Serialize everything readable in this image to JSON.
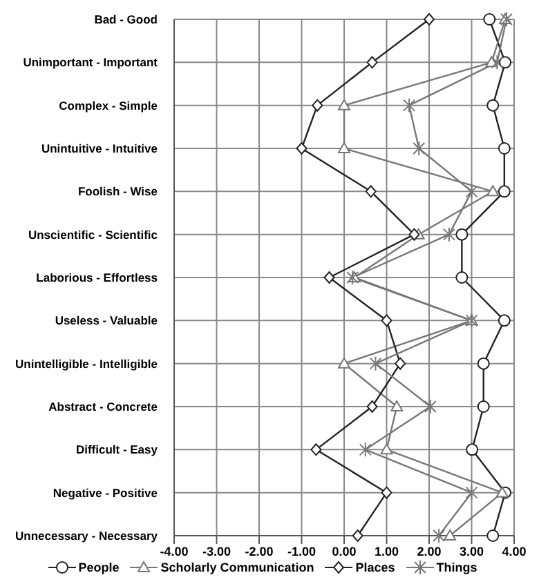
{
  "chart_data": {
    "type": "line",
    "orientation": "horizontal",
    "categories": [
      "Bad - Good",
      "Unimportant - Important",
      "Complex - Simple",
      "Unintuitive - Intuitive",
      "Foolish - Wise",
      "Unscientific - Scientific",
      "Laborious - Effortless",
      "Useless - Valuable",
      "Unintelligible - Intelligible",
      "Abstract - Concrete",
      "Difficult - Easy",
      "Negative - Positive",
      "Unnecessary - Necessary"
    ],
    "series": [
      {
        "name": "People",
        "color": "#222222",
        "marker": "circle",
        "values": [
          3.42,
          3.79,
          3.5,
          3.77,
          3.77,
          2.77,
          2.77,
          3.77,
          3.28,
          3.28,
          3.01,
          3.79,
          3.5
        ]
      },
      {
        "name": "Scholarly Communication",
        "color": "#777777",
        "marker": "triangle",
        "values": [
          3.79,
          3.47,
          0,
          0,
          3.5,
          1.75,
          0.24,
          3.0,
          0,
          1.24,
          1.0,
          3.72,
          2.49
        ]
      },
      {
        "name": "Places",
        "color": "#222222",
        "marker": "diamond",
        "values": [
          2.0,
          0.66,
          -0.63,
          -1.0,
          0.63,
          1.65,
          -0.35,
          1.0,
          1.32,
          0.66,
          -0.66,
          1.0,
          0.32
        ]
      },
      {
        "name": "Things",
        "color": "#777777",
        "marker": "cross",
        "values": [
          3.82,
          3.6,
          1.53,
          1.76,
          3.0,
          2.47,
          0.2,
          3.0,
          0.74,
          2.03,
          0.5,
          3.0,
          2.23
        ]
      }
    ],
    "xlim": [
      -4,
      4
    ],
    "xticks": [
      {
        "value": -4,
        "label": "-4.00"
      },
      {
        "value": -3,
        "label": "-3.00"
      },
      {
        "value": -2,
        "label": "-2.00"
      },
      {
        "value": -1,
        "label": "-1.00"
      },
      {
        "value": 0,
        "label": "0.00"
      },
      {
        "value": 1,
        "label": "1.00"
      },
      {
        "value": 2,
        "label": "2.00"
      },
      {
        "value": 3,
        "label": "3.00"
      },
      {
        "value": 4,
        "label": "4.00"
      }
    ],
    "grid": true,
    "legend": "bottom"
  }
}
